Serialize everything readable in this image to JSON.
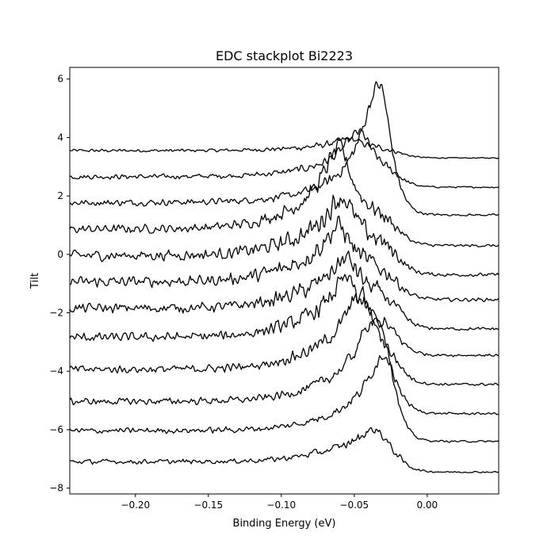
{
  "chart_data": {
    "type": "line",
    "title": "EDC stackplot Bi2223",
    "xlabel": "Binding Energy (eV)",
    "ylabel": "Tilt",
    "xlim": [
      -0.245,
      0.049
    ],
    "ylim": [
      -8.2,
      6.4
    ],
    "x_ticks": [
      -0.2,
      -0.15,
      -0.1,
      -0.05,
      0.0
    ],
    "x_tick_labels": [
      "−0.20",
      "−0.15",
      "−0.10",
      "−0.05",
      "0.00"
    ],
    "y_ticks": [
      6,
      4,
      2,
      0,
      -2,
      -4,
      -6,
      -8
    ],
    "y_tick_labels": [
      "6",
      "4",
      "2",
      "0",
      "−2",
      "−4",
      "−6",
      "−8"
    ],
    "grid": false,
    "legend": "none",
    "line_color": "#000000",
    "series": [
      {
        "baseline": 3.55,
        "peak_x": -0.053,
        "peak_h": 0.3,
        "bg_h": 0.1,
        "right_level": 3.3,
        "noise": 0.06
      },
      {
        "baseline": 2.65,
        "peak_x": -0.046,
        "peak_h": 1.3,
        "bg_h": 0.25,
        "right_level": 2.3,
        "noise": 0.09
      },
      {
        "baseline": 1.75,
        "peak_x": -0.032,
        "peak_h": 3.9,
        "bg_h": 0.4,
        "right_level": 1.35,
        "noise": 0.12
      },
      {
        "baseline": 0.85,
        "peak_x": -0.06,
        "peak_h": 2.2,
        "bg_h": 0.6,
        "right_level": 0.3,
        "noise": 0.16
      },
      {
        "baseline": -0.05,
        "peak_x": -0.058,
        "peak_h": 1.4,
        "bg_h": 0.6,
        "right_level": -0.7,
        "noise": 0.2
      },
      {
        "baseline": -0.95,
        "peak_x": -0.06,
        "peak_h": 1.3,
        "bg_h": 0.6,
        "right_level": -1.55,
        "noise": 0.2
      },
      {
        "baseline": -1.85,
        "peak_x": -0.055,
        "peak_h": 1.1,
        "bg_h": 0.6,
        "right_level": -2.55,
        "noise": 0.18
      },
      {
        "baseline": -2.85,
        "peak_x": -0.055,
        "peak_h": 1.4,
        "bg_h": 0.6,
        "right_level": -3.45,
        "noise": 0.17
      },
      {
        "baseline": -3.95,
        "peak_x": -0.045,
        "peak_h": 1.9,
        "bg_h": 0.7,
        "right_level": -4.45,
        "noise": 0.15
      },
      {
        "baseline": -5.05,
        "peak_x": -0.035,
        "peak_h": 2.3,
        "bg_h": 0.7,
        "right_level": -5.45,
        "noise": 0.13
      },
      {
        "baseline": -6.05,
        "peak_x": -0.027,
        "peak_h": 2.4,
        "bg_h": 0.6,
        "right_level": -6.4,
        "noise": 0.11
      },
      {
        "baseline": -7.1,
        "peak_x": -0.035,
        "peak_h": 0.7,
        "bg_h": 0.45,
        "right_level": -7.45,
        "noise": 0.09
      }
    ]
  }
}
